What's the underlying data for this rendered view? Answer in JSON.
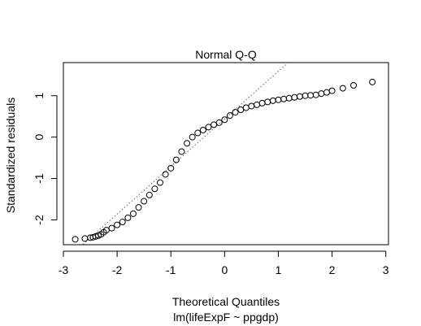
{
  "chart_data": {
    "type": "scatter",
    "title": "Normal Q-Q",
    "xlabel": "Theoretical Quantiles",
    "ylabel": "Standardized residuals",
    "subtitle": "lm(lifeExpF ~ ppgdp)",
    "xlim": [
      -3.0,
      3.05
    ],
    "ylim": [
      -2.6,
      1.8
    ],
    "x_ticks": [
      -3,
      -2,
      -1,
      0,
      1,
      2,
      3
    ],
    "x_tick_labels": [
      "-3",
      "-2",
      "-1",
      "0",
      "1",
      "2",
      "3"
    ],
    "y_ticks": [
      -2,
      -1,
      0,
      1
    ],
    "y_tick_labels": [
      "-2",
      "-1",
      "0",
      "1"
    ],
    "grid": false,
    "reference_line": {
      "intercept": 0.44,
      "slope": 1.15,
      "style": "dotted"
    },
    "marker": "open-circle",
    "x": [
      -2.78,
      -2.6,
      -2.5,
      -2.45,
      -2.4,
      -2.35,
      -2.3,
      -2.25,
      -2.2,
      -2.1,
      -2.0,
      -1.9,
      -1.8,
      -1.7,
      -1.6,
      -1.5,
      -1.4,
      -1.3,
      -1.2,
      -1.1,
      -1.0,
      -0.9,
      -0.8,
      -0.7,
      -0.6,
      -0.5,
      -0.4,
      -0.3,
      -0.2,
      -0.1,
      0.0,
      0.1,
      0.2,
      0.3,
      0.4,
      0.5,
      0.6,
      0.7,
      0.8,
      0.9,
      1.0,
      1.1,
      1.2,
      1.3,
      1.4,
      1.5,
      1.6,
      1.7,
      1.8,
      1.9,
      2.0,
      2.2,
      2.4,
      2.75
    ],
    "y": [
      -2.47,
      -2.45,
      -2.43,
      -2.42,
      -2.4,
      -2.38,
      -2.35,
      -2.3,
      -2.25,
      -2.2,
      -2.12,
      -2.05,
      -1.95,
      -1.85,
      -1.7,
      -1.55,
      -1.4,
      -1.25,
      -1.1,
      -0.9,
      -0.75,
      -0.55,
      -0.35,
      -0.15,
      0.0,
      0.1,
      0.17,
      0.24,
      0.3,
      0.35,
      0.42,
      0.52,
      0.6,
      0.66,
      0.71,
      0.75,
      0.78,
      0.82,
      0.85,
      0.88,
      0.9,
      0.92,
      0.94,
      0.96,
      0.98,
      1.0,
      1.01,
      1.02,
      1.05,
      1.08,
      1.12,
      1.18,
      1.25,
      1.33
    ]
  }
}
